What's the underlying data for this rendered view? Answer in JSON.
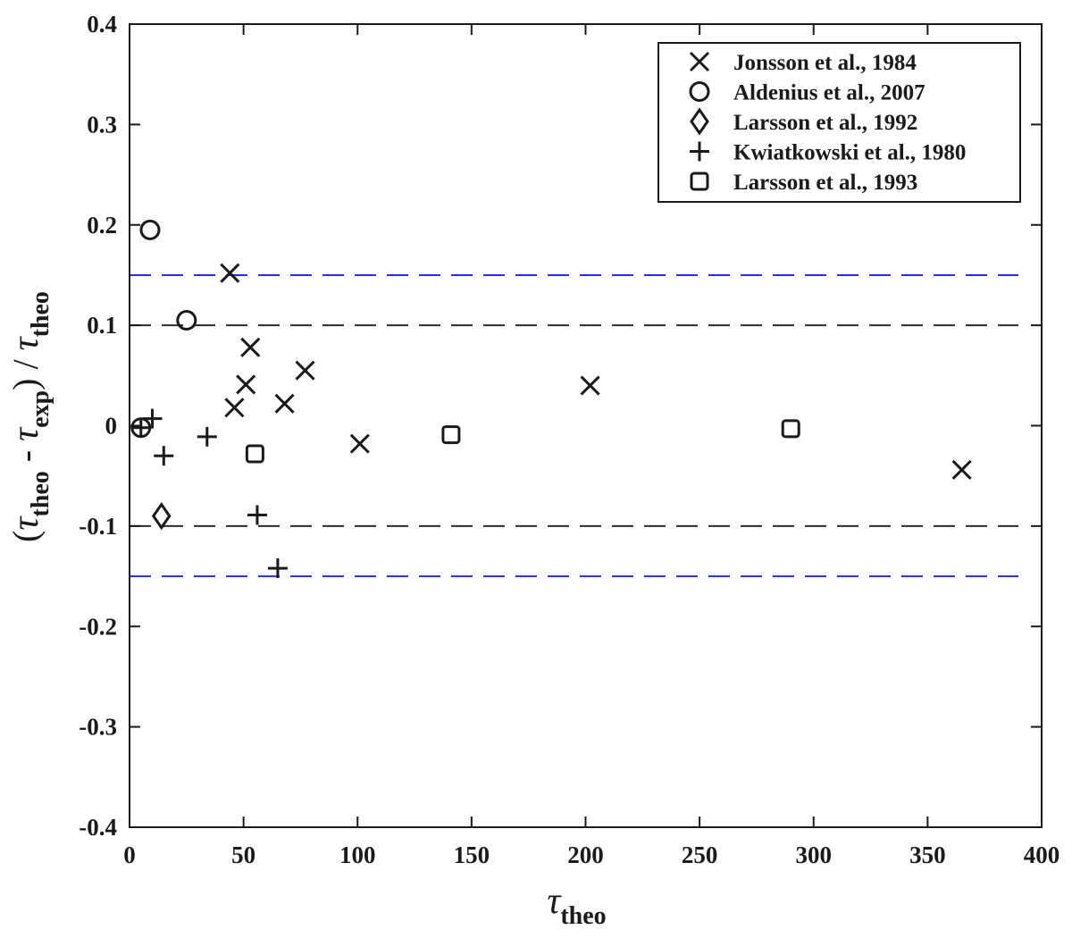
{
  "chart_data": {
    "type": "scatter",
    "xlim": [
      0,
      400
    ],
    "ylim": [
      -0.4,
      0.4
    ],
    "x_ticks": [
      0,
      50,
      100,
      150,
      200,
      250,
      300,
      350,
      400
    ],
    "y_ticks": [
      -0.4,
      -0.3,
      -0.2,
      -0.1,
      0,
      0.1,
      0.2,
      0.3,
      0.4
    ],
    "x_tick_labels": [
      "0",
      "50",
      "100",
      "150",
      "200",
      "250",
      "300",
      "350",
      "400"
    ],
    "y_tick_labels": [
      "-0.4",
      "-0.3",
      "-0.2",
      "-0.1",
      "0",
      "0.1",
      "0.2",
      "0.3",
      "0.4"
    ],
    "xlabel": {
      "symbol": "τ",
      "subscript": "theo"
    },
    "ylabel": {
      "open": "(",
      "sym1": "τ",
      "sub1": "theo",
      "minus": " - ",
      "sym2": "τ",
      "sub2": "exp",
      "close": ") / ",
      "sym3": "τ",
      "sub3": "theo"
    },
    "grid": false,
    "legend_position": "top-right",
    "reference_lines": [
      {
        "y": 0.15,
        "color": "#2a2ae0"
      },
      {
        "y": 0.1,
        "color": "#2a2a2a"
      },
      {
        "y": -0.1,
        "color": "#2a2a2a"
      },
      {
        "y": -0.15,
        "color": "#2a2ae0"
      }
    ],
    "series": [
      {
        "name": "Jonsson et al., 1984",
        "marker": "x",
        "points": [
          [
            44,
            0.152
          ],
          [
            46,
            0.018
          ],
          [
            51,
            0.041
          ],
          [
            53,
            0.078
          ],
          [
            68,
            0.022
          ],
          [
            77,
            0.055
          ],
          [
            101,
            -0.018
          ],
          [
            202,
            0.04
          ],
          [
            365,
            -0.044
          ]
        ]
      },
      {
        "name": "Aldenius et al., 2007",
        "marker": "circle",
        "points": [
          [
            5,
            -0.002
          ],
          [
            9,
            0.195
          ],
          [
            25,
            0.105
          ]
        ]
      },
      {
        "name": "Larsson et al., 1992",
        "marker": "diamond",
        "points": [
          [
            14,
            -0.09
          ]
        ]
      },
      {
        "name": "Kwiatkowski et al., 1980",
        "marker": "plus",
        "points": [
          [
            5,
            -0.002
          ],
          [
            10,
            0.007
          ],
          [
            15,
            -0.03
          ],
          [
            34,
            -0.011
          ],
          [
            56,
            -0.089
          ],
          [
            65,
            -0.142
          ]
        ]
      },
      {
        "name": "Larsson et al., 1993",
        "marker": "square",
        "points": [
          [
            55,
            -0.028
          ],
          [
            141,
            -0.009
          ],
          [
            290,
            -0.003
          ]
        ]
      }
    ]
  }
}
